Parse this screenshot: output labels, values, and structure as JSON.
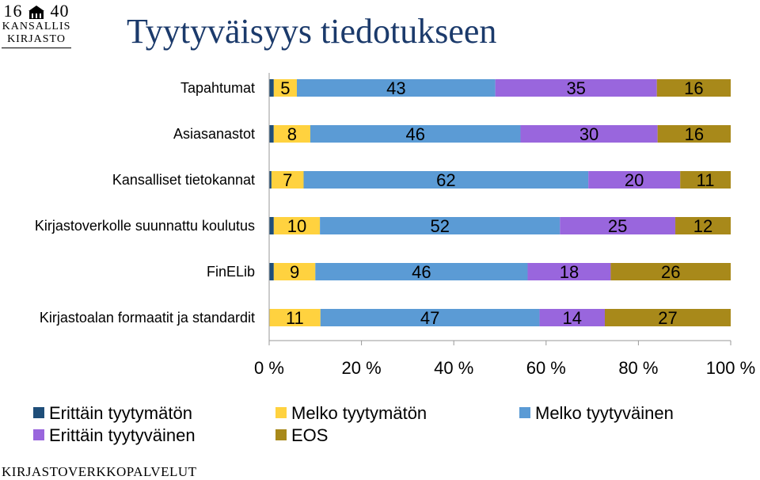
{
  "header": {
    "title": "Tyytyväisyys tiedotukseen",
    "logo": {
      "year_left": "16",
      "year_right": "40",
      "line1": "KANSALLIS",
      "line2": "KIRJASTO",
      "icon": "crest-icon"
    }
  },
  "footer": {
    "text": "KIRJASTOVERKKOPALVELUT"
  },
  "chart_data": {
    "type": "bar",
    "orientation": "horizontal",
    "stacked": "percent",
    "categories": [
      "Tapahtumat",
      "Asiasanastot",
      "Kansalliset tietokannat",
      "Kirjastoverkolle suunnattu koulutus",
      "FinELib",
      "Kirjastoalan formaatit ja standardit"
    ],
    "series": [
      {
        "name": "Erittäin tyytymätön",
        "color": "#1f4e79",
        "values": [
          1,
          1,
          0.5,
          1,
          1,
          0
        ]
      },
      {
        "name": "Melko tyytymätön",
        "color": "#ffd23f",
        "values": [
          5,
          8,
          7,
          10,
          9,
          11
        ]
      },
      {
        "name": "Melko tyytyväinen",
        "color": "#5b9bd5",
        "values": [
          43,
          46,
          62,
          52,
          46,
          47
        ]
      },
      {
        "name": "Erittäin tyytyväinen",
        "color": "#9966dd",
        "values": [
          35,
          30,
          20,
          25,
          18,
          14
        ]
      },
      {
        "name": "EOS",
        "color": "#a8891a",
        "values": [
          16,
          16,
          11,
          12,
          26,
          27
        ]
      }
    ],
    "data_labels": [
      [
        "",
        "5",
        "43",
        "35",
        "16"
      ],
      [
        "",
        "8",
        "46",
        "30",
        "16"
      ],
      [
        "",
        "7",
        "62",
        "20",
        "11"
      ],
      [
        "",
        "10",
        "52",
        "25",
        "12"
      ],
      [
        "",
        "9",
        "46",
        "18",
        "26"
      ],
      [
        "",
        "11",
        "47",
        "14",
        "27"
      ]
    ],
    "x_ticks": [
      "0 %",
      "20 %",
      "40 %",
      "60 %",
      "80 %",
      "100 %"
    ],
    "xlim": [
      0,
      100
    ],
    "grid": false,
    "legend_position": "bottom"
  }
}
